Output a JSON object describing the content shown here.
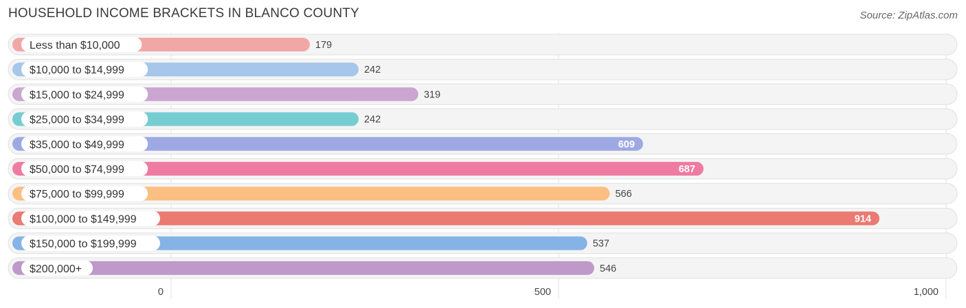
{
  "title": "HOUSEHOLD INCOME BRACKETS IN BLANCO COUNTY",
  "source": "Source: ZipAtlas.com",
  "chart_data": {
    "type": "bar",
    "orientation": "horizontal",
    "categories": [
      "Less than $10,000",
      "$10,000 to $14,999",
      "$15,000 to $24,999",
      "$25,000 to $34,999",
      "$35,000 to $49,999",
      "$50,000 to $74,999",
      "$75,000 to $99,999",
      "$100,000 to $149,999",
      "$150,000 to $199,999",
      "$200,000+"
    ],
    "values": [
      179,
      242,
      319,
      242,
      609,
      687,
      566,
      914,
      537,
      546
    ],
    "value_labels": [
      "179",
      "242",
      "319",
      "242",
      "609",
      "687",
      "566",
      "914",
      "537",
      "546"
    ],
    "colors": [
      "#f2a7a7",
      "#a6c6ea",
      "#cba6d1",
      "#76cdd1",
      "#9ea9e4",
      "#f07ba2",
      "#fbbf82",
      "#ea7a72",
      "#86b3e6",
      "#bf99c9"
    ],
    "xlim": [
      0,
      1000
    ],
    "xticks": [
      0,
      500,
      1000
    ],
    "xtick_labels": [
      "0",
      "500",
      "1,000"
    ],
    "grid": true
  }
}
